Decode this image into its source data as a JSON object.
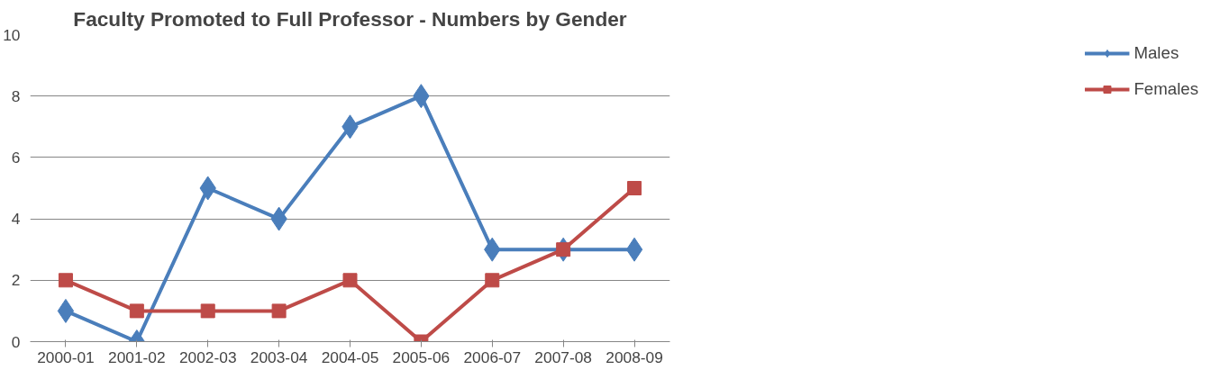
{
  "chart_data": {
    "type": "line",
    "title": "Faculty Promoted to Full Professor - Numbers by Gender",
    "categories": [
      "2000-01",
      "2001-02",
      "2002-03",
      "2003-04",
      "2004-05",
      "2005-06",
      "2006-07",
      "2007-08",
      "2008-09"
    ],
    "series": [
      {
        "name": "Males",
        "color": "#4a7ebb",
        "marker": "diamond",
        "values": [
          1,
          0,
          5,
          4,
          7,
          8,
          3,
          3,
          3
        ]
      },
      {
        "name": "Females",
        "color": "#be4b48",
        "marker": "square",
        "values": [
          2,
          1,
          1,
          1,
          2,
          0,
          2,
          3,
          5
        ]
      }
    ],
    "ylim": [
      0,
      10
    ],
    "yticks": [
      0,
      2,
      4,
      6,
      8,
      10
    ],
    "grid": "y",
    "legend": "right",
    "line_style": "solid"
  }
}
